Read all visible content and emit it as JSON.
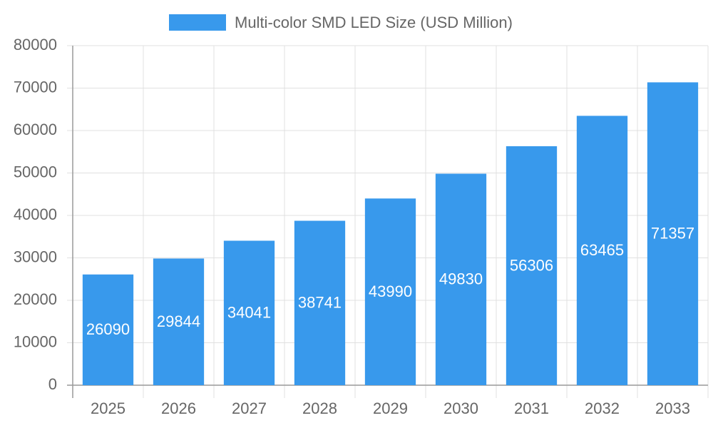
{
  "chart_data": {
    "type": "bar",
    "categories": [
      "2025",
      "2026",
      "2027",
      "2028",
      "2029",
      "2030",
      "2031",
      "2032",
      "2033"
    ],
    "series": [
      {
        "name": "Multi-color SMD LED Size (USD Million)",
        "color": "#3899ec",
        "values": [
          26090,
          29844,
          34041,
          38741,
          43990,
          49830,
          56306,
          63465,
          71357
        ]
      }
    ],
    "ylim": [
      0,
      80000
    ],
    "yticks": [
      0,
      10000,
      20000,
      30000,
      40000,
      50000,
      60000,
      70000,
      80000
    ],
    "grid": true,
    "legend": "top"
  }
}
